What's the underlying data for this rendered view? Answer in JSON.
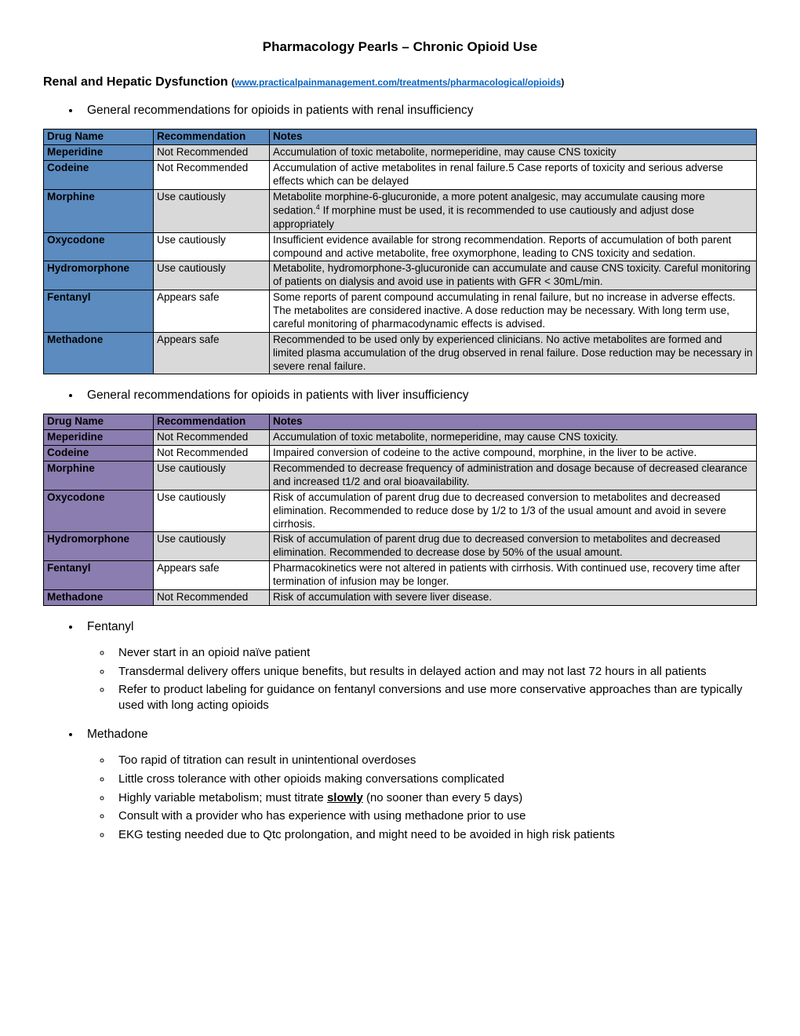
{
  "title": "Pharmacology Pearls – Chronic Opioid Use",
  "sectionHeading": "Renal and Hepatic Dysfunction",
  "sourceUrl": "www.practicalpainmanagement.com/treatments/pharmacological/opioids",
  "bullet1": "General recommendations for opioids in patients with renal insufficiency",
  "bullet2": "General recommendations for opioids in patients with liver insufficiency",
  "table1": {
    "headerColor": "#5b8bbf",
    "drugColColor": "#5b8bbf",
    "columns": {
      "c1": "Drug Name",
      "c2": "Recommendation",
      "c3": "Notes"
    },
    "rows": [
      {
        "drug": "Meperidine",
        "rec": "Not Recommended",
        "notes": "Accumulation of toxic metabolite, normeperidine, may cause CNS toxicity",
        "alt": true
      },
      {
        "drug": "Codeine",
        "rec": "Not Recommended",
        "notes": "Accumulation of active metabolites in renal failure.5 Case reports of toxicity and serious adverse effects which can be delayed",
        "alt": false
      },
      {
        "drug": "Morphine",
        "rec": "Use cautiously",
        "notesHtml": "Metabolite morphine-6-glucuronide, a more potent analgesic, may accumulate causing more sedation.<sup class=\"ref\">4</sup> If morphine must be used, it is recommended to use cautiously and adjust dose appropriately",
        "alt": true
      },
      {
        "drug": "Oxycodone",
        "rec": "Use cautiously",
        "notes": "Insufficient evidence available for strong recommendation. Reports of accumulation of both parent compound and active metabolite, free oxymorphone, leading to CNS toxicity and sedation.",
        "alt": false
      },
      {
        "drug": "Hydromorphone",
        "rec": "Use cautiously",
        "notes": "Metabolite, hydromorphone-3-glucuronide can accumulate and cause CNS toxicity. Careful monitoring of patients on dialysis and avoid use in patients with GFR < 30mL/min.",
        "alt": true
      },
      {
        "drug": "Fentanyl",
        "rec": "Appears safe",
        "notes": "Some reports of parent compound accumulating in renal failure, but no increase in adverse effects. The metabolites are considered inactive. A dose reduction may be necessary. With long term use, careful monitoring of pharmacodynamic effects is advised.",
        "alt": false
      },
      {
        "drug": "Methadone",
        "rec": "Appears safe",
        "notes": "Recommended to be used only by experienced clinicians. No active metabolites are formed and limited plasma accumulation of the drug observed in renal failure. Dose reduction may be necessary in severe renal failure.",
        "alt": true
      }
    ]
  },
  "table2": {
    "headerColor": "#8b7db0",
    "drugColColor": "#8b7db0",
    "columns": {
      "c1": "Drug Name",
      "c2": "Recommendation",
      "c3": "Notes"
    },
    "rows": [
      {
        "drug": "Meperidine",
        "rec": "Not Recommended",
        "notes": "Accumulation of toxic metabolite, normeperidine, may cause CNS toxicity.",
        "alt": true
      },
      {
        "drug": "Codeine",
        "rec": "Not Recommended",
        "notes": "Impaired conversion of codeine to the active compound, morphine, in the liver to be active.",
        "alt": false
      },
      {
        "drug": "Morphine",
        "rec": "Use cautiously",
        "notes": "Recommended to decrease frequency of administration and dosage because of decreased clearance and increased t1/2 and oral bioavailability.",
        "alt": true
      },
      {
        "drug": "Oxycodone",
        "rec": "Use cautiously",
        "notes": "Risk of accumulation of parent drug due to decreased conversion to metabolites and decreased elimination. Recommended to reduce dose by 1/2 to 1/3 of the usual amount and avoid in severe cirrhosis.",
        "alt": false
      },
      {
        "drug": "Hydromorphone",
        "rec": "Use cautiously",
        "notes": "Risk of accumulation of parent drug due to decreased conversion to metabolites and decreased elimination. Recommended to decrease dose by 50% of the usual amount.",
        "alt": true
      },
      {
        "drug": "Fentanyl",
        "rec": "Appears safe",
        "notes": "Pharmacokinetics were not altered in patients with cirrhosis. With continued use, recovery time after termination of infusion may be longer.",
        "alt": false
      },
      {
        "drug": "Methadone",
        "rec": "Not Recommended",
        "notes": "Risk of accumulation with severe liver disease.",
        "alt": true
      }
    ]
  },
  "extra": {
    "fentanyl": {
      "label": "Fentanyl",
      "items": [
        "Never start in an opioid naïve patient",
        "Transdermal delivery offers unique benefits, but results in delayed action and may not last 72 hours in all patients",
        "Refer to product labeling for guidance on fentanyl conversions and use more conservative approaches than are typically used with long acting opioids"
      ]
    },
    "methadone": {
      "label": "Methadone",
      "items": [
        "Too rapid of titration can result in unintentional overdoses",
        "Little cross tolerance with other opioids making conversations complicated",
        {
          "pre": "Highly variable metabolism; must titrate ",
          "bold": "slowly",
          "post": " (no sooner than every 5 days)"
        },
        "Consult with a provider who has experience with using methadone prior to use",
        "EKG testing needed due to Qtc prolongation, and might need to be avoided in high risk patients"
      ]
    }
  }
}
